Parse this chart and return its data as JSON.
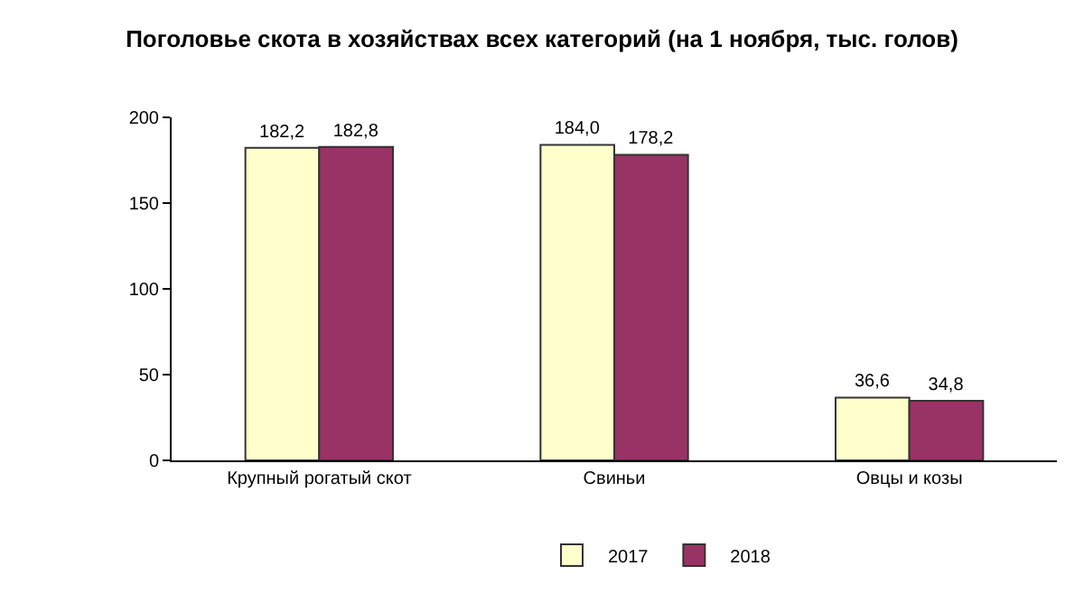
{
  "chart_data": {
    "type": "bar",
    "title": "Поголовье скота в хозяйствах всех категорий (на 1 ноября, тыс. голов)",
    "categories": [
      "Крупный рогатый скот",
      "Свиньи",
      "Овцы и козы"
    ],
    "series": [
      {
        "name": "2017",
        "color": "#ffffcc",
        "values": [
          182.2,
          184.0,
          36.6
        ],
        "value_labels": [
          "182,2",
          "184,0",
          "36,6"
        ]
      },
      {
        "name": "2018",
        "color": "#993366",
        "values": [
          182.8,
          178.2,
          34.8
        ],
        "value_labels": [
          "182,8",
          "178,2",
          "34,8"
        ]
      }
    ],
    "ylim": [
      0,
      200
    ],
    "yticks": [
      0,
      50,
      100,
      150,
      200
    ],
    "legend": "bottom"
  }
}
